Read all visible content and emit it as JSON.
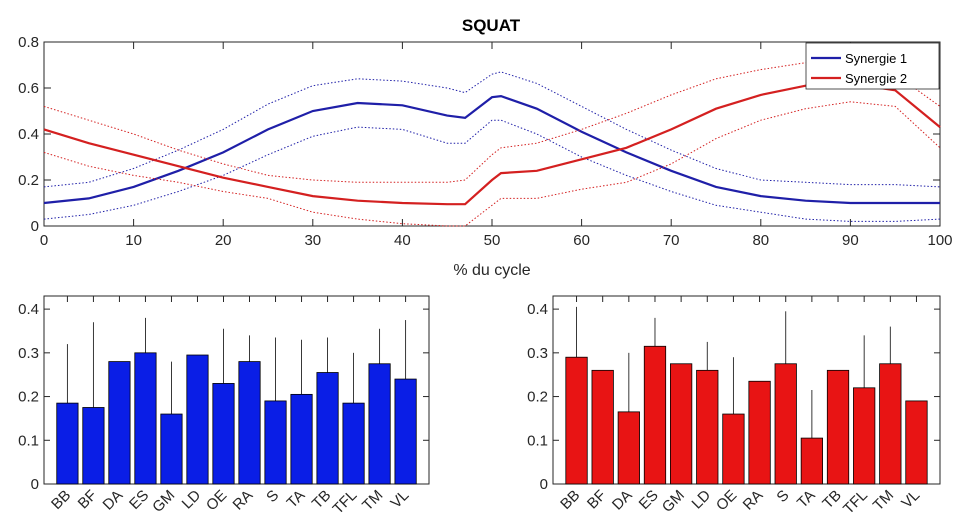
{
  "chart_data": [
    {
      "type": "line",
      "title": "SQUAT",
      "xlabel": "% du cycle",
      "ylabel": "",
      "xlim": [
        0,
        100
      ],
      "ylim": [
        0,
        0.8
      ],
      "xticks": [
        0,
        10,
        20,
        30,
        40,
        50,
        60,
        70,
        80,
        90,
        100
      ],
      "yticks": [
        0,
        0.2,
        0.4,
        0.6,
        0.8
      ],
      "legend": "top-right",
      "x": [
        0,
        5,
        10,
        15,
        20,
        25,
        30,
        35,
        40,
        45,
        47,
        50,
        51,
        55,
        60,
        65,
        70,
        75,
        80,
        85,
        90,
        95,
        100
      ],
      "series": [
        {
          "name": "Synergie 1",
          "color": "#1f1fa8",
          "values": [
            0.1,
            0.12,
            0.17,
            0.24,
            0.32,
            0.42,
            0.5,
            0.535,
            0.525,
            0.48,
            0.47,
            0.56,
            0.565,
            0.51,
            0.41,
            0.32,
            0.24,
            0.17,
            0.13,
            0.11,
            0.1,
            0.1,
            0.1
          ],
          "upper": [
            0.17,
            0.19,
            0.25,
            0.33,
            0.42,
            0.53,
            0.61,
            0.64,
            0.63,
            0.6,
            0.58,
            0.66,
            0.67,
            0.62,
            0.52,
            0.42,
            0.33,
            0.25,
            0.2,
            0.19,
            0.18,
            0.18,
            0.17
          ]
        },
        {
          "name": "Synergie 2",
          "color": "#d42020",
          "values": [
            0.42,
            0.36,
            0.31,
            0.26,
            0.21,
            0.17,
            0.13,
            0.11,
            0.1,
            0.095,
            0.095,
            0.2,
            0.23,
            0.24,
            0.29,
            0.34,
            0.42,
            0.51,
            0.57,
            0.61,
            0.62,
            0.59,
            0.43
          ],
          "upper": [
            0.52,
            0.46,
            0.4,
            0.33,
            0.27,
            0.22,
            0.2,
            0.19,
            0.19,
            0.19,
            0.2,
            0.31,
            0.34,
            0.36,
            0.42,
            0.49,
            0.57,
            0.64,
            0.68,
            0.71,
            0.7,
            0.66,
            0.52
          ]
        }
      ]
    },
    {
      "type": "bar",
      "color": "#0a1ee6",
      "categories": [
        "BB",
        "BF",
        "DA",
        "ES",
        "GM",
        "LD",
        "OE",
        "RA",
        "S",
        "TA",
        "TB",
        "TFL",
        "TM",
        "VL"
      ],
      "values": [
        0.185,
        0.175,
        0.28,
        0.3,
        0.16,
        0.295,
        0.23,
        0.28,
        0.19,
        0.205,
        0.255,
        0.185,
        0.275,
        0.24
      ],
      "error_upper": [
        0.32,
        0.37,
        0.28,
        0.38,
        0.28,
        0.295,
        0.355,
        0.34,
        0.335,
        0.33,
        0.335,
        0.3,
        0.355,
        0.375
      ],
      "ylim": [
        0,
        0.43
      ],
      "yticks": [
        0,
        0.1,
        0.2,
        0.3,
        0.4
      ]
    },
    {
      "type": "bar",
      "color": "#e81414",
      "categories": [
        "BB",
        "BF",
        "DA",
        "ES",
        "GM",
        "LD",
        "OE",
        "RA",
        "S",
        "TA",
        "TB",
        "TFL",
        "TM",
        "VL"
      ],
      "values": [
        0.29,
        0.26,
        0.165,
        0.315,
        0.275,
        0.26,
        0.16,
        0.235,
        0.275,
        0.105,
        0.26,
        0.22,
        0.275,
        0.19
      ],
      "error_upper": [
        0.405,
        0.26,
        0.3,
        0.38,
        0.275,
        0.325,
        0.29,
        0.235,
        0.395,
        0.215,
        0.26,
        0.34,
        0.36,
        0.19
      ],
      "ylim": [
        0,
        0.43
      ],
      "yticks": [
        0,
        0.1,
        0.2,
        0.3,
        0.4
      ]
    }
  ]
}
